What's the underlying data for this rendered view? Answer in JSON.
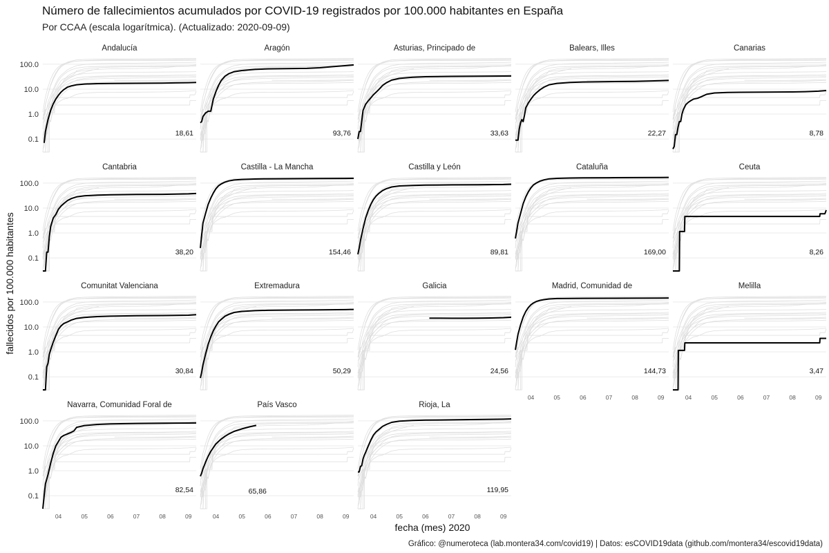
{
  "chart_data": {
    "type": "line",
    "title": "Número de fallecimientos acumulados por COVID-19 registrados por 100.000 habitantes en España",
    "subtitle": "Por CCAA (escala logarítmica). (Actualizado: 2020-09-09)",
    "xlabel": "fecha (mes) 2020",
    "ylabel": "fallecidos por 100.000 habitantes",
    "caption": "Gráfico: @numeroteca (lab.montera34.com/covid19) | Datos: esCOVID19data (github.com/montera34/escovid19data)",
    "y_scale": "log",
    "ylim": [
      0.03,
      200
    ],
    "y_ticks": [
      0.1,
      1,
      10,
      100
    ],
    "y_tick_labels": [
      "0.1",
      "1.0",
      "10.0",
      "100.0"
    ],
    "x_ticks": [
      "04",
      "05",
      "06",
      "07",
      "08",
      "09"
    ],
    "x_tick_months": [
      4,
      5,
      6,
      7,
      8,
      9
    ],
    "xlim_months": [
      3.4,
      9.3
    ],
    "layout": "facet_wrap 5 columns",
    "grid": true,
    "background_series_color": "#dedede",
    "highlight_series_color": "#000000",
    "series": [
      {
        "name": "Andalucía",
        "label": "18,61",
        "x": [
          3.45,
          3.5,
          3.55,
          3.6,
          3.7,
          3.8,
          3.9,
          4.0,
          4.1,
          4.2,
          4.35,
          4.5,
          4.7,
          5.0,
          5.5,
          6.0,
          7.0,
          8.0,
          8.5,
          9.0,
          9.3
        ],
        "y": [
          0.07,
          0.2,
          0.35,
          0.6,
          1.4,
          2.6,
          4.0,
          5.7,
          7.6,
          9.5,
          12,
          13.5,
          15,
          16,
          16.6,
          16.9,
          17.1,
          17.5,
          17.8,
          18.2,
          18.61
        ]
      },
      {
        "name": "Aragón",
        "label": "93,76",
        "x": [
          3.4,
          3.45,
          3.5,
          3.6,
          3.7,
          3.8,
          3.9,
          4.0,
          4.1,
          4.2,
          4.35,
          4.5,
          4.7,
          5.0,
          5.5,
          6.0,
          7.0,
          7.5,
          8.0,
          8.5,
          9.0,
          9.3
        ],
        "y": [
          0.45,
          0.5,
          0.8,
          1.1,
          1.3,
          1.3,
          4,
          8,
          14,
          22,
          33,
          42,
          50,
          56,
          62,
          65,
          67,
          68,
          72,
          80,
          88,
          93.76
        ]
      },
      {
        "name": "Asturias, Principado de",
        "label": "33,63",
        "x": [
          3.4,
          3.45,
          3.5,
          3.6,
          3.7,
          3.8,
          3.9,
          4.0,
          4.1,
          4.2,
          4.35,
          4.5,
          4.7,
          5.0,
          5.5,
          6.0,
          7.0,
          8.0,
          9.0,
          9.3
        ],
        "y": [
          0.1,
          0.2,
          0.2,
          1.4,
          2.5,
          3.4,
          4.5,
          6,
          7.5,
          9.5,
          14,
          18,
          23,
          27,
          30,
          31.5,
          32.5,
          33,
          33.5,
          33.63
        ]
      },
      {
        "name": "Balears, Illes",
        "label": "22,27",
        "x": [
          3.4,
          3.5,
          3.55,
          3.6,
          3.65,
          3.7,
          3.75,
          3.8,
          3.9,
          4.0,
          4.1,
          4.2,
          4.35,
          4.5,
          4.7,
          5.0,
          5.5,
          6.0,
          7.0,
          8.0,
          8.5,
          9.0,
          9.3
        ],
        "y": [
          0.09,
          0.09,
          0.25,
          0.45,
          0.6,
          0.5,
          0.9,
          1.8,
          2.8,
          4,
          5.5,
          7,
          9.5,
          12,
          15,
          17,
          18.5,
          19.3,
          20,
          20.5,
          21,
          21.8,
          22.27
        ]
      },
      {
        "name": "Canarias",
        "label": "8,78",
        "x": [
          3.4,
          3.45,
          3.5,
          3.55,
          3.6,
          3.65,
          3.7,
          3.75,
          3.8,
          3.9,
          4.0,
          4.1,
          4.2,
          4.35,
          4.5,
          4.7,
          5.0,
          5.5,
          6.0,
          7.0,
          8.0,
          8.5,
          9.0,
          9.3
        ],
        "y": [
          0.04,
          0.05,
          0.15,
          0.15,
          0.3,
          0.5,
          0.5,
          1.0,
          1.5,
          2.4,
          3,
          3.5,
          4.0,
          4.3,
          5.0,
          6.2,
          7,
          7.4,
          7.5,
          7.6,
          7.7,
          7.9,
          8.3,
          8.78
        ]
      },
      {
        "name": "Cantabria",
        "label": "38,20",
        "x": [
          3.4,
          3.5,
          3.55,
          3.6,
          3.65,
          3.7,
          3.8,
          3.9,
          4.0,
          4.1,
          4.2,
          4.35,
          4.5,
          4.7,
          5.0,
          5.5,
          6.0,
          7.0,
          8.0,
          9.0,
          9.3
        ],
        "y": [
          0.03,
          0.03,
          0.17,
          0.17,
          0.7,
          1.8,
          4.0,
          5.5,
          9,
          12,
          15,
          20,
          24,
          28,
          31,
          33,
          34,
          35,
          35.5,
          37,
          38.2
        ]
      },
      {
        "name": "Castilla - La Mancha",
        "label": "154,46",
        "x": [
          3.4,
          3.45,
          3.5,
          3.6,
          3.7,
          3.8,
          3.9,
          4.0,
          4.1,
          4.2,
          4.35,
          4.5,
          4.7,
          5.0,
          5.5,
          6.0,
          7.0,
          8.0,
          9.0,
          9.3
        ],
        "y": [
          0.25,
          0.8,
          2.5,
          6,
          14,
          25,
          40,
          60,
          78,
          92,
          110,
          122,
          133,
          140,
          145,
          148,
          150,
          152,
          153.5,
          154.46
        ]
      },
      {
        "name": "Castilla y León",
        "label": "89,81",
        "x": [
          3.4,
          3.45,
          3.5,
          3.6,
          3.7,
          3.8,
          3.9,
          4.0,
          4.1,
          4.2,
          4.35,
          4.5,
          4.7,
          5.0,
          5.5,
          6.0,
          7.0,
          8.0,
          9.0,
          9.3
        ],
        "y": [
          0.14,
          0.25,
          0.5,
          1.5,
          4,
          8,
          14,
          22,
          30,
          38,
          50,
          60,
          70,
          77,
          81,
          83,
          85,
          86,
          88,
          89.81
        ]
      },
      {
        "name": "Cataluña",
        "label": "169,00",
        "x": [
          3.4,
          3.45,
          3.5,
          3.6,
          3.7,
          3.8,
          3.9,
          4.0,
          4.1,
          4.2,
          4.35,
          4.5,
          4.7,
          5.0,
          5.5,
          6.0,
          7.0,
          8.0,
          9.0,
          9.3
        ],
        "y": [
          0.6,
          1.2,
          2.5,
          6,
          15,
          28,
          45,
          65,
          85,
          100,
          120,
          135,
          148,
          155,
          160,
          162,
          164,
          166,
          168,
          169
        ]
      },
      {
        "name": "Ceuta",
        "label": "8,26",
        "x": [
          3.4,
          3.65,
          3.66,
          3.85,
          3.86,
          9.05,
          9.06,
          9.25,
          9.3
        ],
        "y": [
          0.03,
          0.03,
          1.15,
          1.15,
          4.6,
          4.6,
          5.9,
          5.9,
          8.26
        ]
      },
      {
        "name": "Comunitat Valenciana",
        "label": "30,84",
        "x": [
          3.4,
          3.5,
          3.55,
          3.6,
          3.65,
          3.7,
          3.8,
          3.9,
          4.0,
          4.1,
          4.2,
          4.35,
          4.5,
          4.7,
          5.0,
          5.5,
          6.0,
          7.0,
          8.0,
          9.0,
          9.3
        ],
        "y": [
          0.03,
          0.03,
          0.25,
          0.35,
          0.8,
          1.2,
          2.5,
          4.5,
          8,
          11,
          13.5,
          16,
          19,
          22,
          24,
          26,
          27,
          28,
          28.5,
          29.5,
          30.84
        ]
      },
      {
        "name": "Extremadura",
        "label": "50,29",
        "x": [
          3.4,
          3.45,
          3.5,
          3.6,
          3.7,
          3.8,
          3.9,
          4.0,
          4.1,
          4.2,
          4.35,
          4.5,
          4.7,
          5.0,
          5.5,
          6.0,
          7.0,
          8.0,
          9.0,
          9.3
        ],
        "y": [
          0.09,
          0.15,
          0.3,
          0.8,
          2,
          4,
          7,
          11,
          16,
          20,
          27,
          32,
          38,
          42,
          45,
          46.5,
          47.5,
          48.5,
          49.5,
          50.29
        ]
      },
      {
        "name": "Galicia",
        "label": "24,56",
        "x": [
          6.15,
          6.5,
          7.0,
          7.5,
          8.0,
          8.5,
          9.0,
          9.3
        ],
        "y": [
          22.5,
          22.4,
          22.3,
          22.3,
          22.5,
          22.9,
          23.6,
          24.56
        ]
      },
      {
        "name": "Madrid, Comunidad de",
        "label": "144,73",
        "x": [
          3.4,
          3.45,
          3.5,
          3.6,
          3.7,
          3.8,
          3.9,
          4.0,
          4.1,
          4.2,
          4.35,
          4.5,
          4.7,
          5.0,
          5.5,
          6.0,
          7.0,
          8.0,
          9.0,
          9.3
        ],
        "y": [
          1.2,
          2.5,
          5,
          12,
          25,
          42,
          60,
          78,
          92,
          104,
          116,
          124,
          132,
          137,
          139,
          140,
          141,
          142,
          143.5,
          144.73
        ]
      },
      {
        "name": "Melilla",
        "label": "3,47",
        "x": [
          3.4,
          3.6,
          3.61,
          3.85,
          3.86,
          9.05,
          9.06,
          9.3
        ],
        "y": [
          0.03,
          0.03,
          1.15,
          1.15,
          2.3,
          2.3,
          3.47,
          3.47
        ]
      },
      {
        "name": "Navarra, Comunidad Foral de",
        "label": "82,54",
        "x": [
          3.4,
          3.45,
          3.5,
          3.6,
          3.7,
          3.8,
          3.9,
          4.0,
          4.1,
          4.2,
          4.35,
          4.5,
          4.6,
          4.7,
          5.0,
          5.5,
          6.0,
          7.0,
          8.0,
          9.0,
          9.3
        ],
        "y": [
          0.03,
          0.1,
          0.3,
          0.7,
          2,
          5,
          10,
          15,
          22,
          26,
          30,
          35,
          40,
          55,
          65,
          72,
          76,
          79,
          80.5,
          82,
          82.54
        ]
      },
      {
        "name": "País Vasco",
        "label": "65,86",
        "x": [
          3.4,
          3.45,
          3.5,
          3.6,
          3.7,
          3.8,
          3.9,
          4.0,
          4.1,
          4.2,
          4.35,
          4.5,
          4.7,
          5.0,
          5.3,
          5.55
        ],
        "y": [
          0.6,
          0.8,
          1.2,
          2.2,
          3.8,
          6,
          8.5,
          12,
          15,
          18.5,
          24,
          30,
          38,
          48,
          58,
          65.86
        ]
      },
      {
        "name": "Rioja, La",
        "label": "119,95",
        "x": [
          3.4,
          3.45,
          3.5,
          3.55,
          3.6,
          3.65,
          3.7,
          3.8,
          3.9,
          4.0,
          4.1,
          4.2,
          4.35,
          4.5,
          4.7,
          5.0,
          5.5,
          6.0,
          7.0,
          8.0,
          9.0,
          9.3
        ],
        "y": [
          0.9,
          0.9,
          1.5,
          1.6,
          3,
          4.2,
          5.5,
          10,
          17,
          27,
          36,
          44,
          60,
          72,
          87,
          98,
          104,
          107,
          110,
          113,
          117,
          119.95
        ]
      }
    ]
  }
}
